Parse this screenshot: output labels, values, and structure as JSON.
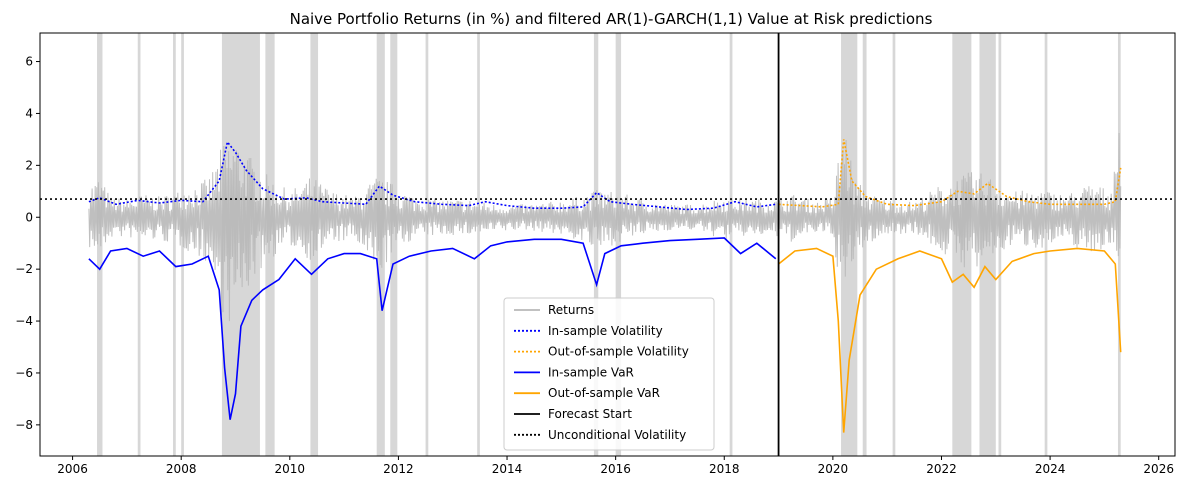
{
  "chart_data": {
    "type": "line",
    "title": "Naive Portfolio Returns (in %) and filtered AR(1)-GARCH(1,1) Value at Risk predictions",
    "xlabel": "",
    "ylabel": "",
    "xlim": [
      2005.4,
      2026.3
    ],
    "ylim": [
      -9.2,
      7.1
    ],
    "x_ticks": [
      2006,
      2008,
      2010,
      2012,
      2014,
      2016,
      2018,
      2020,
      2022,
      2024,
      2026
    ],
    "y_ticks": [
      -8,
      -6,
      -4,
      -2,
      0,
      2,
      4,
      6
    ],
    "grid": false,
    "legend_position": "lower center",
    "forecast_start": 2019.0,
    "unconditional_volatility": 0.7,
    "violation_bands": [
      [
        2006.45,
        2006.55
      ],
      [
        2007.2,
        2007.25
      ],
      [
        2007.85,
        2007.9
      ],
      [
        2008.0,
        2008.05
      ],
      [
        2008.75,
        2009.45
      ],
      [
        2009.55,
        2009.72
      ],
      [
        2010.38,
        2010.52
      ],
      [
        2011.6,
        2011.75
      ],
      [
        2011.85,
        2011.98
      ],
      [
        2012.5,
        2012.55
      ],
      [
        2013.45,
        2013.5
      ],
      [
        2015.6,
        2015.68
      ],
      [
        2016.0,
        2016.1
      ],
      [
        2018.1,
        2018.15
      ],
      [
        2020.15,
        2020.45
      ],
      [
        2020.55,
        2020.62
      ],
      [
        2021.1,
        2021.15
      ],
      [
        2022.2,
        2022.55
      ],
      [
        2022.7,
        2023.0
      ],
      [
        2023.05,
        2023.1
      ],
      [
        2023.9,
        2023.95
      ],
      [
        2025.25,
        2025.3
      ]
    ],
    "series": [
      {
        "name": "Returns",
        "color": "#b8b8b8",
        "style": "solid",
        "x": [
          2006.3,
          2006.5,
          2006.7,
          2007.0,
          2007.3,
          2007.6,
          2007.9,
          2008.2,
          2008.5,
          2008.8,
          2009.0,
          2009.3,
          2009.6,
          2010.0,
          2010.4,
          2010.8,
          2011.2,
          2011.6,
          2011.9,
          2012.3,
          2012.8,
          2013.3,
          2013.8,
          2014.3,
          2014.8,
          2015.3,
          2015.7,
          2016.0,
          2016.5,
          2017.0,
          2017.5,
          2018.0,
          2018.5,
          2018.95,
          2019.3,
          2019.7,
          2020.0,
          2020.2,
          2020.4,
          2020.7,
          2021.0,
          2021.5,
          2022.0,
          2022.3,
          2022.6,
          2022.9,
          2023.3,
          2023.8,
          2024.3,
          2024.8,
          2025.1,
          2025.3
        ],
        "high": [
          1.3,
          1.6,
          0.8,
          0.7,
          0.9,
          0.8,
          1.0,
          1.3,
          1.5,
          3.0,
          3.2,
          2.3,
          1.6,
          1.0,
          1.6,
          1.0,
          0.8,
          1.6,
          1.3,
          0.8,
          0.7,
          0.7,
          0.5,
          0.5,
          0.6,
          0.8,
          1.1,
          1.0,
          0.7,
          0.5,
          0.5,
          0.8,
          0.7,
          0.7,
          0.9,
          0.6,
          0.8,
          3.9,
          1.5,
          0.9,
          0.7,
          0.6,
          1.3,
          1.6,
          1.8,
          1.6,
          1.0,
          1.1,
          0.9,
          1.4,
          1.0,
          4.7
        ],
        "low": [
          -1.2,
          -1.5,
          -0.8,
          -0.8,
          -0.9,
          -0.9,
          -1.1,
          -1.4,
          -1.8,
          -4.3,
          -4.0,
          -2.5,
          -1.7,
          -1.1,
          -1.7,
          -1.0,
          -0.9,
          -2.4,
          -1.4,
          -0.8,
          -0.7,
          -0.7,
          -0.6,
          -0.5,
          -0.6,
          -0.9,
          -1.4,
          -1.0,
          -0.7,
          -0.5,
          -0.5,
          -0.9,
          -0.7,
          -0.8,
          -1.0,
          -0.6,
          -0.9,
          -3.5,
          -1.6,
          -1.0,
          -0.7,
          -0.6,
          -1.4,
          -1.8,
          -2.2,
          -1.7,
          -1.1,
          -1.2,
          -1.0,
          -1.5,
          -1.0,
          -3.0
        ]
      },
      {
        "name": "In-sample Volatility",
        "color": "#0000ff",
        "style": "dotted",
        "x": [
          2006.3,
          2006.5,
          2006.8,
          2007.2,
          2007.6,
          2008.0,
          2008.4,
          2008.7,
          2008.85,
          2009.0,
          2009.2,
          2009.5,
          2009.9,
          2010.3,
          2010.6,
          2011.0,
          2011.4,
          2011.65,
          2011.9,
          2012.3,
          2012.8,
          2013.3,
          2013.6,
          2014.0,
          2014.5,
          2015.0,
          2015.4,
          2015.65,
          2015.9,
          2016.3,
          2016.8,
          2017.3,
          2017.8,
          2018.2,
          2018.6,
          2018.95
        ],
        "y": [
          0.6,
          0.75,
          0.5,
          0.65,
          0.55,
          0.65,
          0.6,
          1.4,
          2.9,
          2.5,
          1.8,
          1.1,
          0.7,
          0.75,
          0.6,
          0.55,
          0.5,
          1.2,
          0.85,
          0.6,
          0.5,
          0.45,
          0.6,
          0.45,
          0.35,
          0.35,
          0.4,
          0.95,
          0.6,
          0.5,
          0.4,
          0.3,
          0.35,
          0.6,
          0.4,
          0.5
        ]
      },
      {
        "name": "Out-of-sample Volatility",
        "color": "#ffa500",
        "style": "dotted",
        "x": [
          2019.0,
          2019.4,
          2019.8,
          2020.1,
          2020.2,
          2020.35,
          2020.6,
          2021.0,
          2021.5,
          2022.0,
          2022.3,
          2022.6,
          2022.85,
          2023.2,
          2023.6,
          2024.0,
          2024.5,
          2025.0,
          2025.2,
          2025.3
        ],
        "y": [
          0.5,
          0.45,
          0.4,
          0.5,
          3.0,
          1.4,
          0.8,
          0.5,
          0.45,
          0.6,
          1.0,
          0.9,
          1.3,
          0.8,
          0.6,
          0.5,
          0.5,
          0.5,
          0.6,
          1.9
        ]
      },
      {
        "name": "In-sample VaR",
        "color": "#0000ff",
        "style": "solid",
        "x": [
          2006.3,
          2006.5,
          2006.7,
          2007.0,
          2007.3,
          2007.6,
          2007.9,
          2008.2,
          2008.5,
          2008.7,
          2008.8,
          2008.9,
          2009.0,
          2009.1,
          2009.3,
          2009.5,
          2009.8,
          2010.1,
          2010.4,
          2010.7,
          2011.0,
          2011.3,
          2011.6,
          2011.7,
          2011.9,
          2012.2,
          2012.6,
          2013.0,
          2013.4,
          2013.7,
          2014.0,
          2014.5,
          2015.0,
          2015.4,
          2015.65,
          2015.8,
          2016.1,
          2016.5,
          2017.0,
          2017.5,
          2018.0,
          2018.3,
          2018.6,
          2018.95
        ],
        "y": [
          -1.6,
          -2.0,
          -1.3,
          -1.2,
          -1.5,
          -1.3,
          -1.9,
          -1.8,
          -1.5,
          -2.8,
          -5.8,
          -7.8,
          -6.8,
          -4.2,
          -3.2,
          -2.8,
          -2.4,
          -1.6,
          -2.2,
          -1.6,
          -1.4,
          -1.4,
          -1.6,
          -3.6,
          -1.8,
          -1.5,
          -1.3,
          -1.2,
          -1.6,
          -1.1,
          -0.95,
          -0.85,
          -0.85,
          -1.0,
          -2.6,
          -1.4,
          -1.1,
          -1.0,
          -0.9,
          -0.85,
          -0.8,
          -1.4,
          -1.0,
          -1.6
        ]
      },
      {
        "name": "Out-of-sample VaR",
        "color": "#ffa500",
        "style": "solid",
        "x": [
          2019.0,
          2019.3,
          2019.7,
          2020.0,
          2020.1,
          2020.2,
          2020.3,
          2020.5,
          2020.8,
          2021.2,
          2021.6,
          2022.0,
          2022.2,
          2022.4,
          2022.6,
          2022.8,
          2023.0,
          2023.3,
          2023.7,
          2024.0,
          2024.5,
          2025.0,
          2025.2,
          2025.3
        ],
        "y": [
          -1.8,
          -1.3,
          -1.2,
          -1.5,
          -4.0,
          -8.3,
          -5.5,
          -3.0,
          -2.0,
          -1.6,
          -1.3,
          -1.6,
          -2.5,
          -2.2,
          -2.7,
          -1.9,
          -2.4,
          -1.7,
          -1.4,
          -1.3,
          -1.2,
          -1.3,
          -1.8,
          -5.2
        ]
      }
    ],
    "legend": [
      {
        "label": "Returns",
        "color": "#b8b8b8",
        "style": "solid"
      },
      {
        "label": "In-sample Volatility",
        "color": "#0000ff",
        "style": "dotted"
      },
      {
        "label": "Out-of-sample Volatility",
        "color": "#ffa500",
        "style": "dotted"
      },
      {
        "label": "In-sample VaR",
        "color": "#0000ff",
        "style": "solid"
      },
      {
        "label": "Out-of-sample VaR",
        "color": "#ffa500",
        "style": "solid"
      },
      {
        "label": "Forecast Start",
        "color": "#000000",
        "style": "solid"
      },
      {
        "label": "Unconditional Volatility",
        "color": "#000000",
        "style": "dotted"
      }
    ]
  }
}
